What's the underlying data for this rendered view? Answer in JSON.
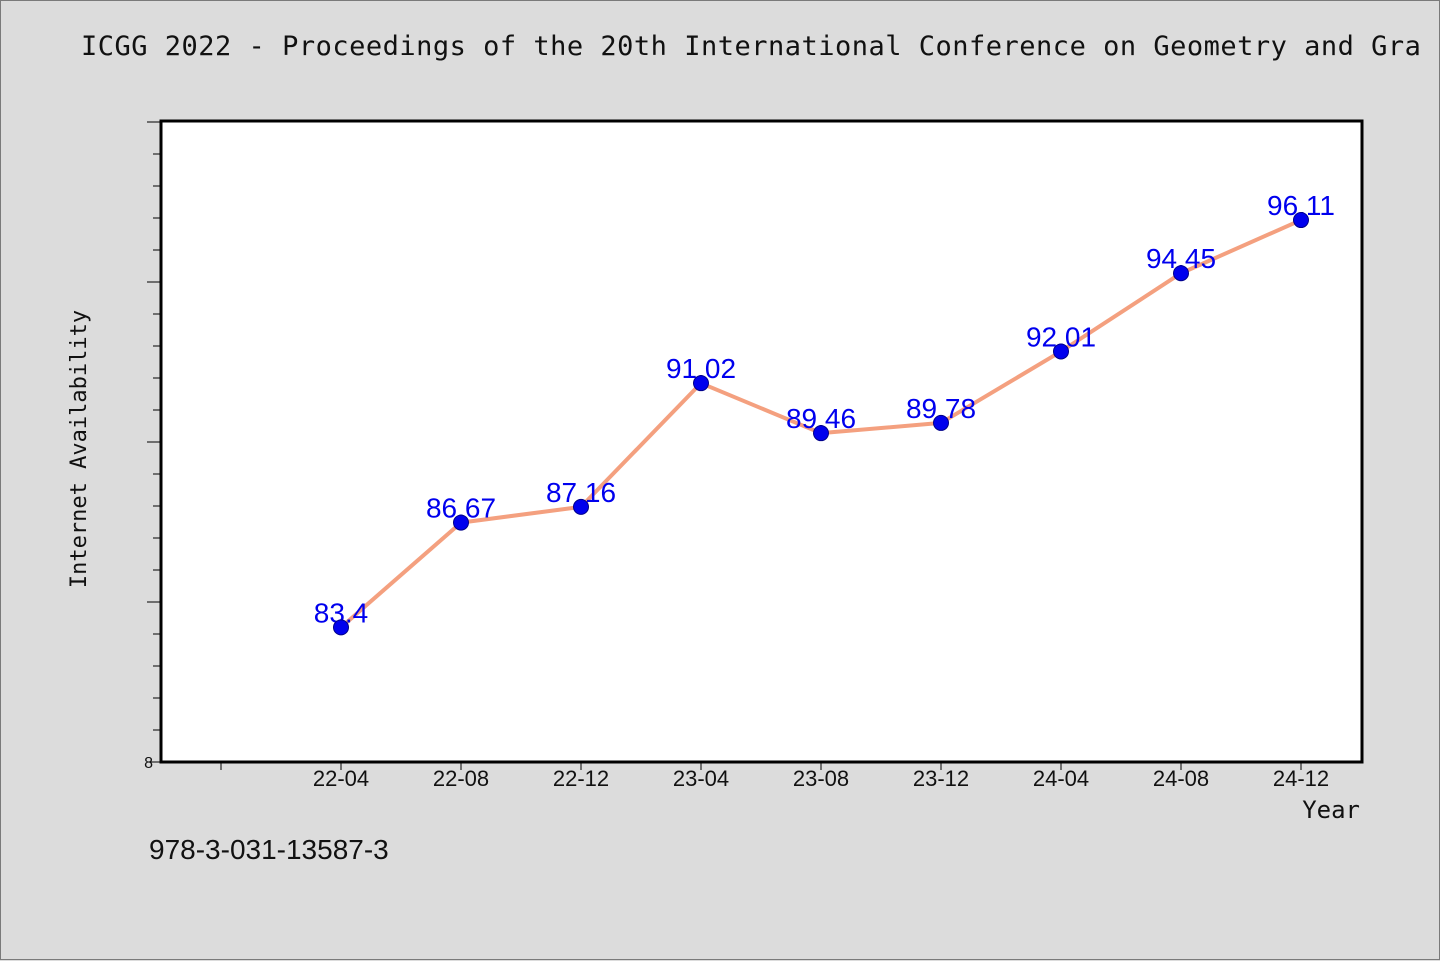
{
  "chart_data": {
    "type": "line",
    "title": "ICGG 2022 - Proceedings of the 20th International Conference on Geometry and Gra",
    "xlabel": "Year",
    "ylabel": "Internet Availability",
    "categories": [
      "22-04",
      "22-08",
      "22-12",
      "23-04",
      "23-08",
      "23-12",
      "24-04",
      "24-08",
      "24-12"
    ],
    "series": [
      {
        "values": [
          83.4,
          86.67,
          87.16,
          91.02,
          89.46,
          89.78,
          92.01,
          94.45,
          96.11
        ],
        "point_labels": [
          "83.4",
          "86.67",
          "87.16",
          "91.02",
          "89.46",
          "89.78",
          "92.01",
          "94.45",
          "96.11"
        ]
      }
    ],
    "y_tick_label": "8",
    "ylim": [
      79.2,
      99.2
    ],
    "grid": false,
    "colors": {
      "line": "#f4a07f",
      "marker": "#0000ee",
      "label": "#0000ee",
      "background": "#dcdcdc",
      "plot_background": "#ffffff"
    }
  },
  "footer": {
    "isbn": "978-3-031-13587-3"
  }
}
